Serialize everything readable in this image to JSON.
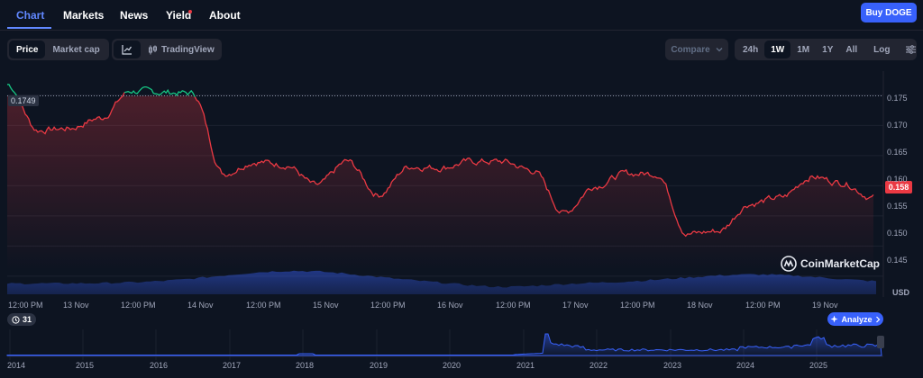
{
  "nav": {
    "tabs": [
      {
        "label": "Chart",
        "active": true
      },
      {
        "label": "Markets"
      },
      {
        "label": "News"
      },
      {
        "label": "Yield"
      },
      {
        "label": "About"
      }
    ],
    "buy_label": "Buy DOGE"
  },
  "toolbar": {
    "view_toggle": [
      "Price",
      "Market cap"
    ],
    "view_selected": "Price",
    "line_icon": "line-chart-icon",
    "tradingview_label": "TradingView",
    "compare_label": "Compare",
    "ranges": [
      "24h",
      "1W",
      "1M",
      "1Y",
      "All"
    ],
    "range_selected": "1W",
    "log_label": "Log",
    "settings_icon": "sliders-icon"
  },
  "chart": {
    "start_price_label": "0.1749",
    "current_price_label": "0.158",
    "currency_label": "USD",
    "watermark": "CoinMarketCap",
    "y_ticks": [
      "0.175",
      "0.170",
      "0.165",
      "0.160",
      "0.155",
      "0.150",
      "0.145"
    ],
    "x_ticks": [
      "12:00 PM",
      "13 Nov",
      "12:00 PM",
      "14 Nov",
      "12:00 PM",
      "15 Nov",
      "12:00 PM",
      "16 Nov",
      "12:00 PM",
      "17 Nov",
      "12:00 PM",
      "18 Nov",
      "12:00 PM",
      "19 Nov"
    ],
    "colors": {
      "up": "#16c784",
      "down": "#ea3943",
      "volume": "#3861fb"
    }
  },
  "navigator": {
    "events_count": "31",
    "analyze_label": "Analyze",
    "years": [
      "2014",
      "2015",
      "2016",
      "2017",
      "2018",
      "2019",
      "2020",
      "2021",
      "2022",
      "2023",
      "2024",
      "2025"
    ]
  },
  "chart_data": {
    "type": "line",
    "x": [
      "12 Nov 12:00",
      "12 Nov 18:00",
      "13 Nov 00:00",
      "13 Nov 06:00",
      "13 Nov 12:00",
      "13 Nov 18:00",
      "14 Nov 00:00",
      "14 Nov 06:00",
      "14 Nov 12:00",
      "14 Nov 18:00",
      "15 Nov 00:00",
      "15 Nov 06:00",
      "15 Nov 12:00",
      "15 Nov 18:00",
      "16 Nov 00:00",
      "16 Nov 06:00",
      "16 Nov 12:00",
      "16 Nov 18:00",
      "17 Nov 00:00",
      "17 Nov 06:00",
      "17 Nov 12:00",
      "17 Nov 18:00",
      "18 Nov 00:00",
      "18 Nov 06:00",
      "18 Nov 12:00",
      "18 Nov 18:00",
      "19 Nov 00:00",
      "19 Nov 06:00",
      "19 Nov 12:00"
    ],
    "series": [
      {
        "values": [
          0.1768,
          0.1692,
          0.1695,
          0.1712,
          0.1757,
          0.1755,
          0.1753,
          0.162,
          0.164,
          0.1635,
          0.16,
          0.164,
          0.1585,
          0.1632,
          0.163,
          0.164,
          0.164,
          0.1625,
          0.1555,
          0.16,
          0.162,
          0.162,
          0.152,
          0.1525,
          0.157,
          0.158,
          0.1615,
          0.1605,
          0.158
        ]
      }
    ],
    "ylim": [
      0.142,
      0.179
    ],
    "reference_line": 0.1749,
    "current": 0.158
  }
}
